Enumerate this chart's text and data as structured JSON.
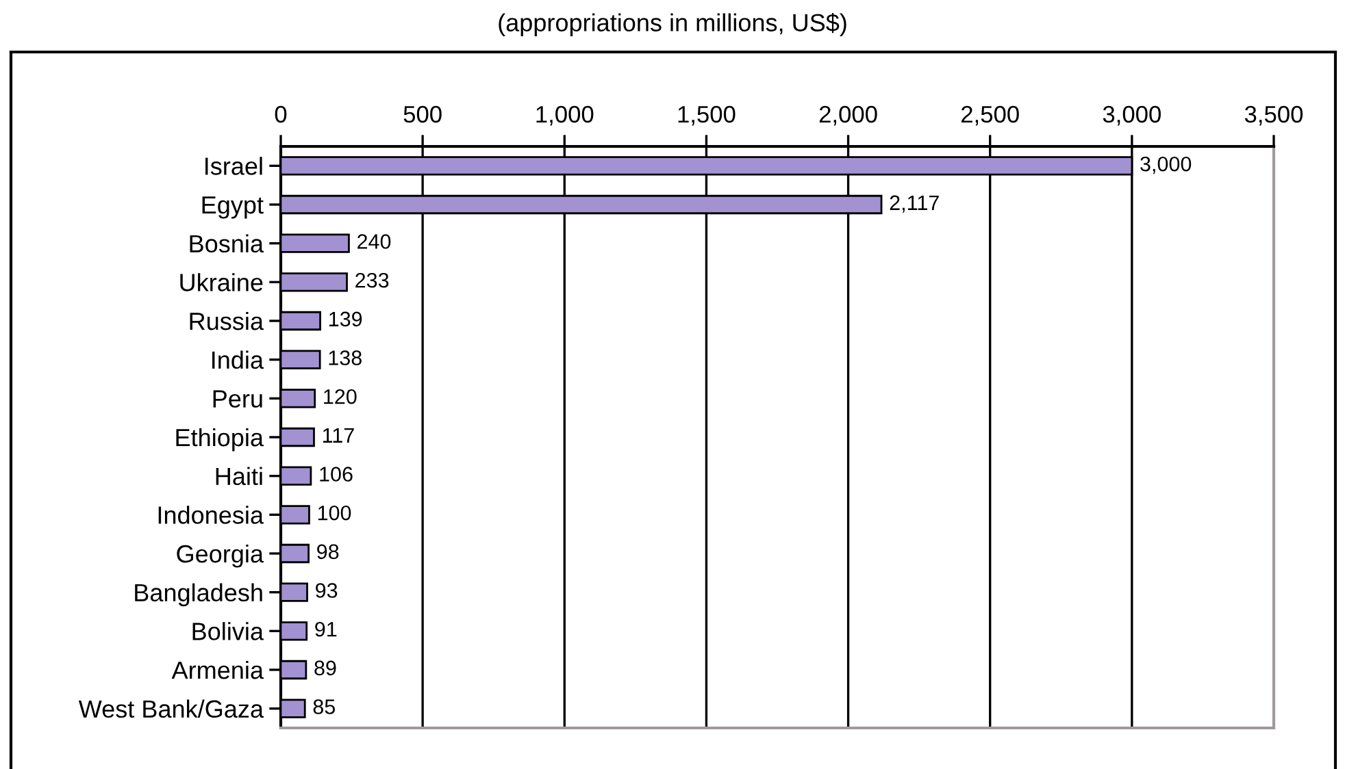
{
  "chart_data": {
    "type": "bar",
    "orientation": "horizontal",
    "title": "(appropriations in millions, US$)",
    "categories": [
      "Israel",
      "Egypt",
      "Bosnia",
      "Ukraine",
      "Russia",
      "India",
      "Peru",
      "Ethiopia",
      "Haiti",
      "Indonesia",
      "Georgia",
      "Bangladesh",
      "Bolivia",
      "Armenia",
      "West Bank/Gaza"
    ],
    "values": [
      3000,
      2117,
      240,
      233,
      139,
      138,
      120,
      117,
      106,
      100,
      98,
      93,
      91,
      89,
      85
    ],
    "value_labels": [
      "3,000",
      "2,117",
      "240",
      "233",
      "139",
      "138",
      "120",
      "117",
      "106",
      "100",
      "98",
      "93",
      "91",
      "89",
      "85"
    ],
    "color": "#a292d2",
    "xlim": [
      0,
      3500
    ],
    "xticks": [
      0,
      500,
      {
        "value": 1000,
        "label": "1,000"
      },
      {
        "value": 1500,
        "label": "1,500"
      },
      {
        "value": 2000,
        "label": "2,000"
      },
      {
        "value": 2500,
        "label": "2,500"
      },
      {
        "value": 3000,
        "label": "3,000"
      },
      {
        "value": 3500,
        "label": "3,500"
      }
    ],
    "grid": "x"
  }
}
